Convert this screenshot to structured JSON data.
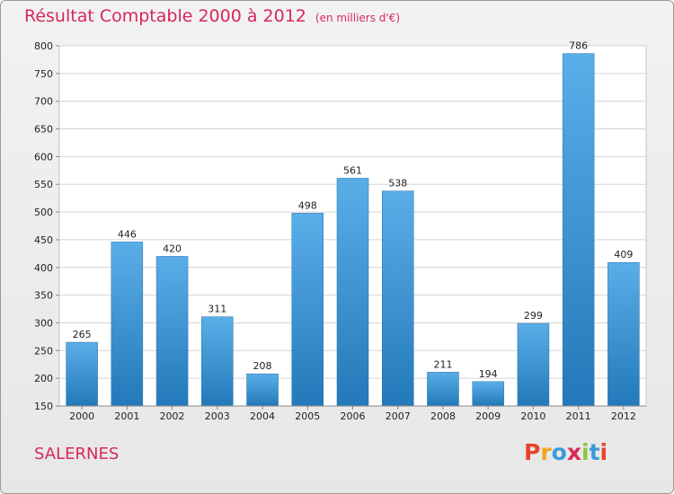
{
  "title": "Résultat Comptable 2000 à 2012",
  "subtitle": "(en milliers d'€)",
  "place": "SALERNES",
  "logo": {
    "text": "Proxiti",
    "colors": [
      "#e8442a",
      "#f2a51a",
      "#3b9ad9",
      "#d7285a",
      "#8cc63f",
      "#3b9ad9",
      "#e8442a"
    ]
  },
  "colors": {
    "title": "#d7285a",
    "bar_top": "#5aaee8",
    "bar_bottom": "#2379b9"
  },
  "chart_data": {
    "type": "bar",
    "categories": [
      "2000",
      "2001",
      "2002",
      "2003",
      "2004",
      "2005",
      "2006",
      "2007",
      "2008",
      "2009",
      "2010",
      "2011",
      "2012"
    ],
    "values": [
      265,
      446,
      420,
      311,
      208,
      498,
      561,
      538,
      211,
      194,
      299,
      786,
      409
    ],
    "yticks": [
      150,
      200,
      250,
      300,
      350,
      400,
      450,
      500,
      550,
      600,
      650,
      700,
      750,
      800
    ],
    "ylim": [
      150,
      800
    ],
    "grid": true
  }
}
